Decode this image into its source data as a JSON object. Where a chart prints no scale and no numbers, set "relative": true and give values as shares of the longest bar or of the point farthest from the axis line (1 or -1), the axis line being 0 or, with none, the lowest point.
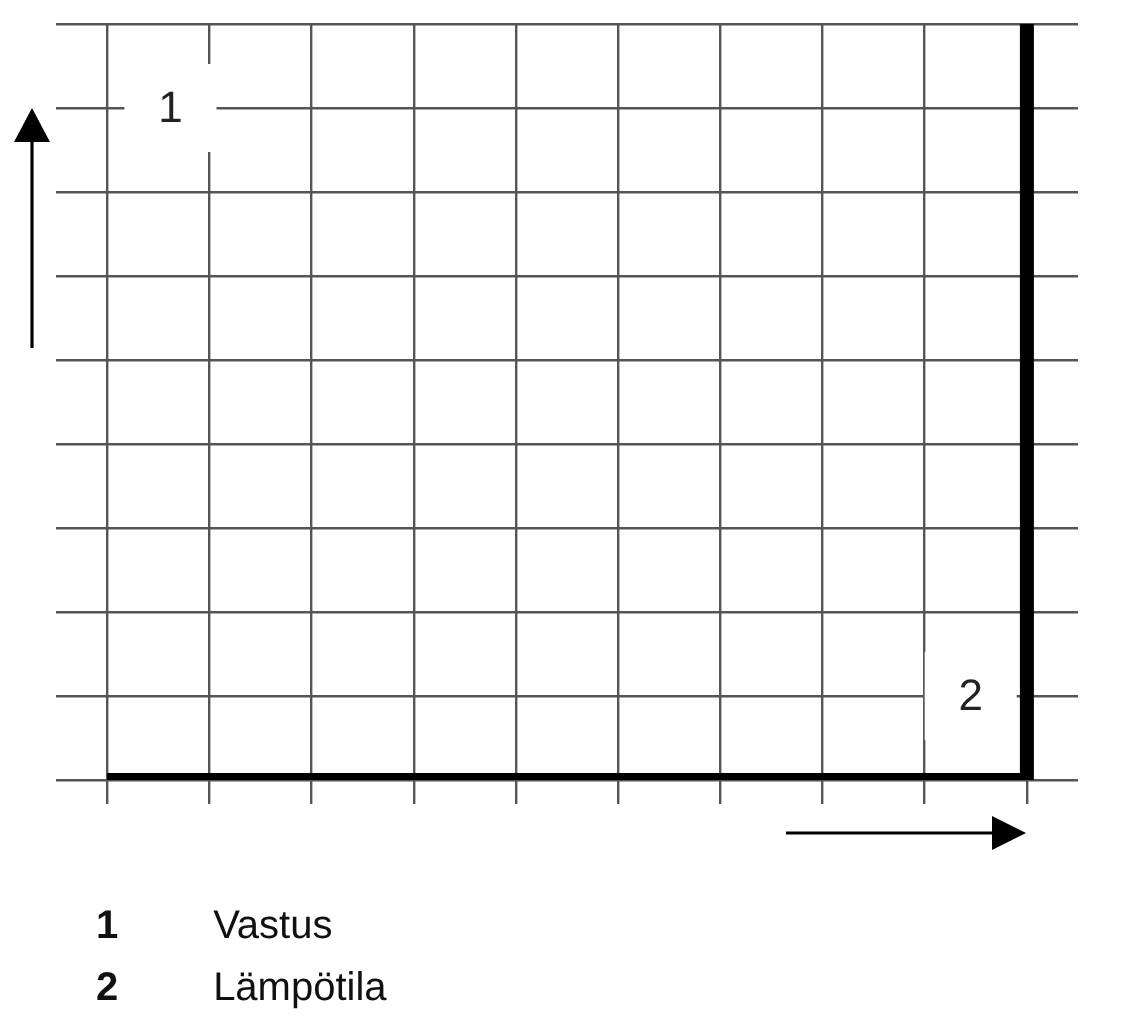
{
  "chart_data": {
    "type": "step",
    "relative": true,
    "categories": [
      null,
      null,
      null,
      null,
      null,
      null,
      null,
      null,
      null,
      null
    ],
    "values": [
      0,
      0,
      0,
      0,
      0,
      0,
      0,
      0,
      0,
      1
    ],
    "color": "#000000",
    "xlabel": "2",
    "ylabel": "1",
    "annotations": [
      "1 Vastus",
      "2 Lämpötila"
    ],
    "grid": true,
    "tick_labels": false
  }
}
